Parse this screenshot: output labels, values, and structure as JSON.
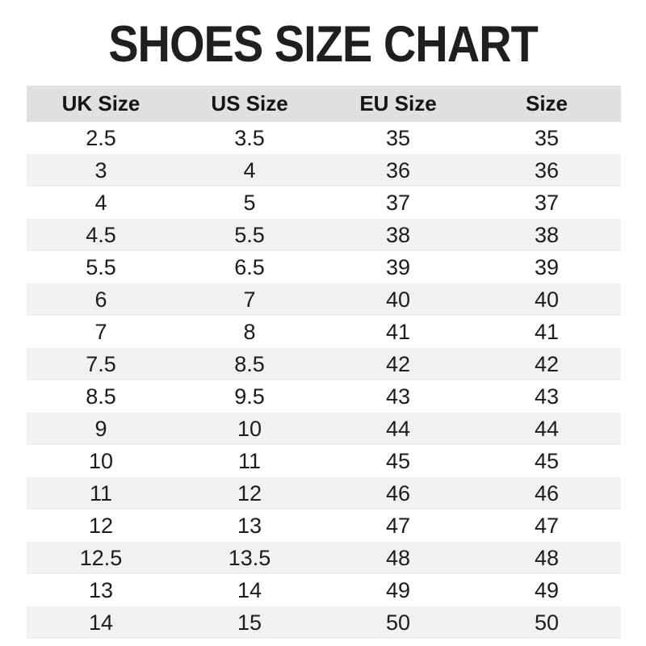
{
  "title": "SHOES SIZE CHART",
  "colors": {
    "header_bg": "#e0e0e0",
    "row_alt_bg": "#f1f1f1",
    "text": "#1c1c1c",
    "background": "#ffffff"
  },
  "table": {
    "headers": [
      "UK Size",
      "US Size",
      "EU Size",
      "Size"
    ],
    "rows": [
      [
        "2.5",
        "3.5",
        "35",
        "35"
      ],
      [
        "3",
        "4",
        "36",
        "36"
      ],
      [
        "4",
        "5",
        "37",
        "37"
      ],
      [
        "4.5",
        "5.5",
        "38",
        "38"
      ],
      [
        "5.5",
        "6.5",
        "39",
        "39"
      ],
      [
        "6",
        "7",
        "40",
        "40"
      ],
      [
        "7",
        "8",
        "41",
        "41"
      ],
      [
        "7.5",
        "8.5",
        "42",
        "42"
      ],
      [
        "8.5",
        "9.5",
        "43",
        "43"
      ],
      [
        "9",
        "10",
        "44",
        "44"
      ],
      [
        "10",
        "11",
        "45",
        "45"
      ],
      [
        "11",
        "12",
        "46",
        "46"
      ],
      [
        "12",
        "13",
        "47",
        "47"
      ],
      [
        "12.5",
        "13.5",
        "48",
        "48"
      ],
      [
        "13",
        "14",
        "49",
        "49"
      ],
      [
        "14",
        "15",
        "50",
        "50"
      ]
    ]
  },
  "chart_data": {
    "type": "table",
    "title": "SHOES SIZE CHART",
    "columns": [
      "UK Size",
      "US Size",
      "EU Size",
      "Size"
    ],
    "rows": [
      [
        "2.5",
        "3.5",
        "35",
        "35"
      ],
      [
        "3",
        "4",
        "36",
        "36"
      ],
      [
        "4",
        "5",
        "37",
        "37"
      ],
      [
        "4.5",
        "5.5",
        "38",
        "38"
      ],
      [
        "5.5",
        "6.5",
        "39",
        "39"
      ],
      [
        "6",
        "7",
        "40",
        "40"
      ],
      [
        "7",
        "8",
        "41",
        "41"
      ],
      [
        "7.5",
        "8.5",
        "42",
        "42"
      ],
      [
        "8.5",
        "9.5",
        "43",
        "43"
      ],
      [
        "9",
        "10",
        "44",
        "44"
      ],
      [
        "10",
        "11",
        "45",
        "45"
      ],
      [
        "11",
        "12",
        "46",
        "46"
      ],
      [
        "12",
        "13",
        "47",
        "47"
      ],
      [
        "12.5",
        "13.5",
        "48",
        "48"
      ],
      [
        "13",
        "14",
        "49",
        "49"
      ],
      [
        "14",
        "15",
        "50",
        "50"
      ]
    ],
    "layout": {
      "header_background": "#e0e0e0",
      "alternating_rows": true,
      "row_alt_background": "#f1f1f1",
      "borders": "none",
      "text_alignment": "center"
    }
  }
}
